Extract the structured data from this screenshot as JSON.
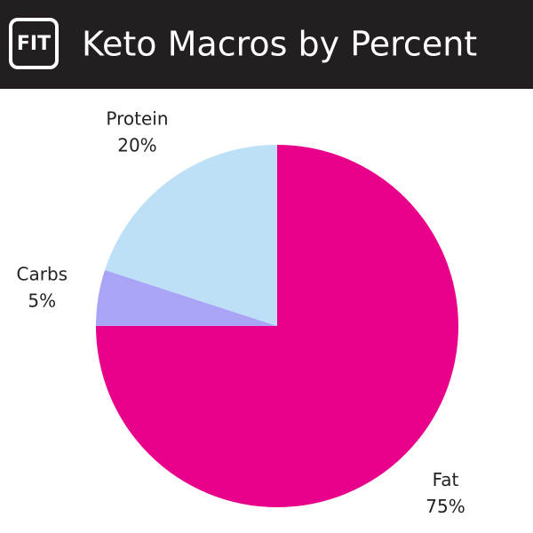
{
  "header": {
    "logo": "FIT"
  },
  "chart_data": {
    "type": "pie",
    "title": "Keto Macros by Percent",
    "categories": [
      "Fat",
      "Carbs",
      "Protein"
    ],
    "values": [
      75,
      5,
      20
    ],
    "value_labels": [
      "75%",
      "5%",
      "20%"
    ],
    "colors": [
      "#e8008a",
      "#a9a4f5",
      "#bde0f7"
    ]
  }
}
